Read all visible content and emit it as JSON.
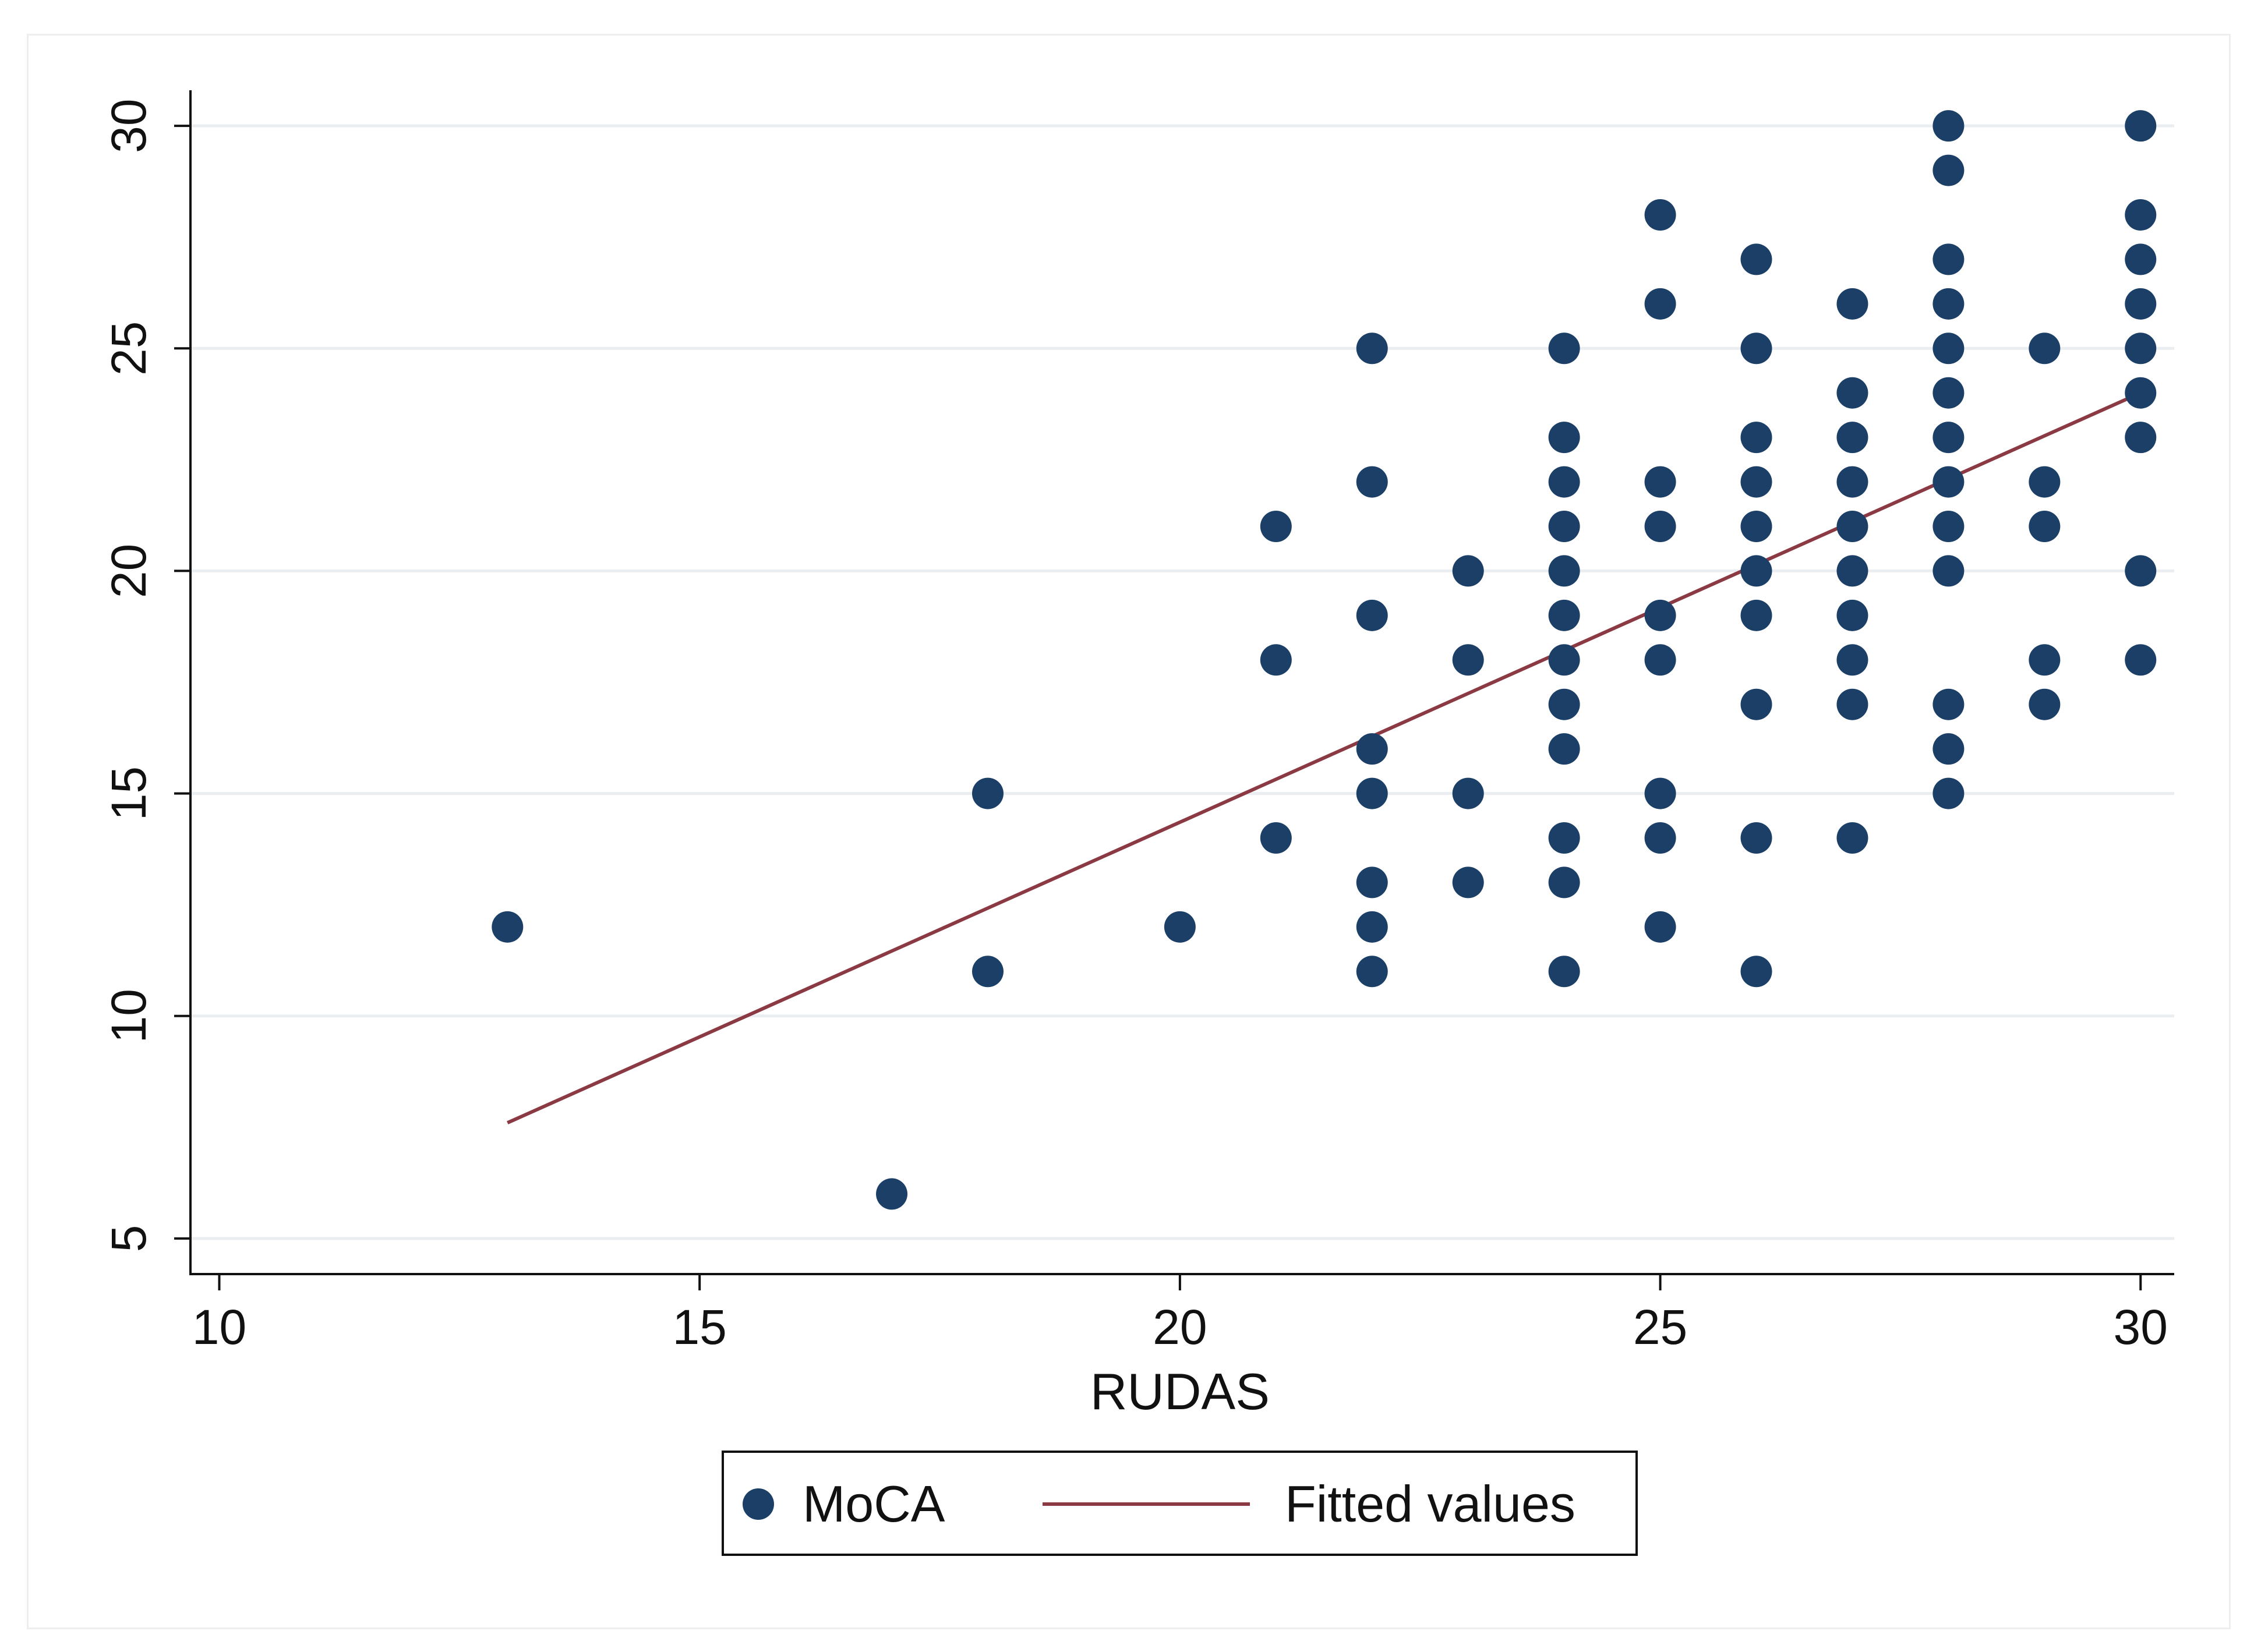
{
  "chart_data": {
    "type": "scatter",
    "title": "",
    "xlabel": "RUDAS",
    "ylabel": "",
    "xlim": [
      9.7,
      30.35
    ],
    "ylim": [
      4.2,
      30.8
    ],
    "x_ticks": [
      10,
      15,
      20,
      25,
      30
    ],
    "y_ticks": [
      5,
      10,
      15,
      20,
      25,
      30
    ],
    "grid": true,
    "legend_position": "bottom",
    "series": [
      {
        "name": "MoCA",
        "kind": "scatter",
        "color": "#1b3f66",
        "points": [
          [
            13,
            12
          ],
          [
            17,
            6
          ],
          [
            18,
            15
          ],
          [
            18,
            11
          ],
          [
            20,
            12
          ],
          [
            21,
            21
          ],
          [
            21,
            18
          ],
          [
            21,
            14
          ],
          [
            22,
            25
          ],
          [
            22,
            22
          ],
          [
            22,
            19
          ],
          [
            22,
            16
          ],
          [
            22,
            15
          ],
          [
            22,
            13
          ],
          [
            22,
            12
          ],
          [
            22,
            11
          ],
          [
            23,
            20
          ],
          [
            23,
            18
          ],
          [
            23,
            15
          ],
          [
            23,
            13
          ],
          [
            24,
            25
          ],
          [
            24,
            23
          ],
          [
            24,
            22
          ],
          [
            24,
            21
          ],
          [
            24,
            20
          ],
          [
            24,
            19
          ],
          [
            24,
            18
          ],
          [
            24,
            17
          ],
          [
            24,
            16
          ],
          [
            24,
            14
          ],
          [
            24,
            13
          ],
          [
            24,
            11
          ],
          [
            25,
            28
          ],
          [
            25,
            26
          ],
          [
            25,
            22
          ],
          [
            25,
            21
          ],
          [
            25,
            19
          ],
          [
            25,
            18
          ],
          [
            25,
            15
          ],
          [
            25,
            14
          ],
          [
            25,
            12
          ],
          [
            26,
            27
          ],
          [
            26,
            25
          ],
          [
            26,
            23
          ],
          [
            26,
            22
          ],
          [
            26,
            21
          ],
          [
            26,
            20
          ],
          [
            26,
            19
          ],
          [
            26,
            17
          ],
          [
            26,
            14
          ],
          [
            26,
            11
          ],
          [
            27,
            26
          ],
          [
            27,
            24
          ],
          [
            27,
            23
          ],
          [
            27,
            22
          ],
          [
            27,
            21
          ],
          [
            27,
            20
          ],
          [
            27,
            19
          ],
          [
            27,
            18
          ],
          [
            27,
            17
          ],
          [
            27,
            14
          ],
          [
            28,
            30
          ],
          [
            28,
            29
          ],
          [
            28,
            27
          ],
          [
            28,
            26
          ],
          [
            28,
            25
          ],
          [
            28,
            24
          ],
          [
            28,
            23
          ],
          [
            28,
            22
          ],
          [
            28,
            21
          ],
          [
            28,
            20
          ],
          [
            28,
            17
          ],
          [
            28,
            16
          ],
          [
            28,
            15
          ],
          [
            29,
            25
          ],
          [
            29,
            22
          ],
          [
            29,
            21
          ],
          [
            29,
            18
          ],
          [
            29,
            17
          ],
          [
            30,
            30
          ],
          [
            30,
            28
          ],
          [
            30,
            27
          ],
          [
            30,
            26
          ],
          [
            30,
            25
          ],
          [
            30,
            24
          ],
          [
            30,
            23
          ],
          [
            30,
            20
          ],
          [
            30,
            18
          ]
        ]
      },
      {
        "name": "Fitted values",
        "kind": "line",
        "color": "#8b3a44",
        "points": [
          [
            13,
            7.6
          ],
          [
            30,
            24.0
          ]
        ]
      }
    ]
  }
}
